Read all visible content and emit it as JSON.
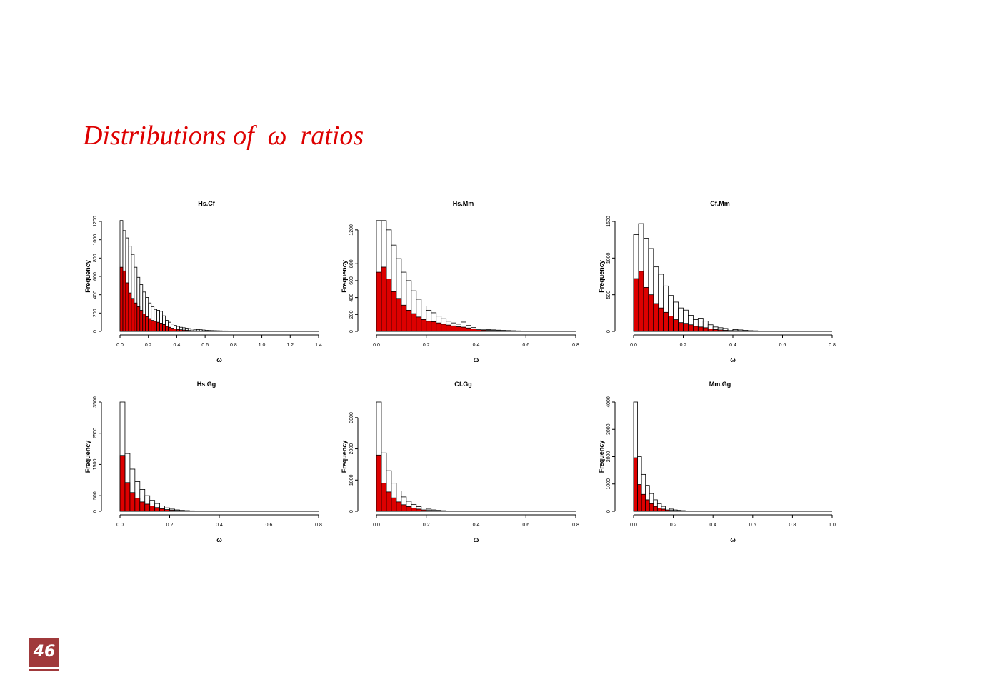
{
  "slide": {
    "title": "Distributions of  ω  ratios",
    "page_number": "46"
  },
  "colors": {
    "title": "#dd0000",
    "filled_bars": "#dd0000",
    "outline_bars": "#ffffff",
    "page_badge": "#a0393b"
  },
  "chart_data": [
    {
      "type": "bar",
      "title": "Hs.Cf",
      "xlabel": "ω",
      "ylabel": "Frequency",
      "bin_width": 0.02,
      "x_start": 0.0,
      "xlim": [
        0,
        1.4
      ],
      "ylim": [
        0,
        1200
      ],
      "x_ticks": [
        "0.0",
        "0.2",
        "0.4",
        "0.6",
        "0.8",
        "1.0",
        "1.2",
        "1.4"
      ],
      "y_ticks": [
        "0",
        "200",
        "400",
        "600",
        "800",
        "1000",
        "1200"
      ],
      "series": [
        {
          "fill": "outline",
          "values": [
            1210,
            1100,
            1020,
            930,
            840,
            700,
            590,
            510,
            430,
            370,
            310,
            270,
            240,
            230,
            220,
            170,
            120,
            100,
            80,
            65,
            55,
            45,
            40,
            35,
            30,
            25,
            22,
            20,
            18,
            15,
            12,
            10,
            9,
            8,
            7,
            6,
            5,
            5,
            4,
            4,
            3,
            3,
            2,
            2,
            2,
            2,
            1,
            1,
            1,
            1
          ]
        },
        {
          "fill": "red",
          "values": [
            700,
            660,
            530,
            420,
            360,
            310,
            270,
            230,
            190,
            160,
            140,
            120,
            110,
            100,
            90,
            75,
            55,
            45,
            35,
            28,
            22,
            18,
            15,
            12,
            10,
            8,
            7,
            6,
            5,
            4,
            3,
            3,
            2,
            2,
            2,
            1,
            1,
            1,
            1,
            1,
            1,
            1,
            0,
            0,
            0,
            0,
            0,
            0,
            0,
            0
          ]
        }
      ]
    },
    {
      "type": "bar",
      "title": "Hs.Mm",
      "xlabel": "ω",
      "ylabel": "Frequency",
      "bin_width": 0.02,
      "x_start": 0.0,
      "xlim": [
        0,
        0.8
      ],
      "ylim": [
        0,
        1300
      ],
      "x_ticks": [
        "0.0",
        "0.2",
        "0.4",
        "0.6",
        "0.8"
      ],
      "y_ticks": [
        "0",
        "200",
        "400",
        "600",
        "800",
        "1200"
      ],
      "series": [
        {
          "fill": "outline",
          "values": [
            1310,
            1310,
            1200,
            1020,
            860,
            700,
            600,
            480,
            380,
            300,
            250,
            220,
            180,
            150,
            120,
            100,
            85,
            110,
            70,
            45,
            30,
            25,
            22,
            18,
            15,
            12,
            10,
            8,
            6,
            5
          ]
        },
        {
          "fill": "red",
          "values": [
            700,
            760,
            620,
            470,
            390,
            310,
            250,
            210,
            170,
            140,
            120,
            115,
            100,
            85,
            75,
            65,
            55,
            50,
            40,
            30,
            20,
            15,
            12,
            10,
            8,
            6,
            5,
            4,
            3,
            2
          ]
        }
      ]
    },
    {
      "type": "bar",
      "title": "Cf.Mm",
      "xlabel": "ω",
      "ylabel": "Frequency",
      "bin_width": 0.02,
      "x_start": 0.0,
      "xlim": [
        0,
        0.8
      ],
      "ylim": [
        0,
        1500
      ],
      "x_ticks": [
        "0.0",
        "0.2",
        "0.4",
        "0.6",
        "0.8"
      ],
      "y_ticks": [
        "0",
        "500",
        "1000",
        "1500"
      ],
      "series": [
        {
          "fill": "outline",
          "values": [
            1320,
            1470,
            1270,
            1130,
            880,
            780,
            620,
            490,
            400,
            320,
            290,
            220,
            160,
            180,
            140,
            90,
            60,
            50,
            40,
            35,
            25,
            20,
            15,
            10,
            8,
            5,
            3
          ]
        },
        {
          "fill": "red",
          "values": [
            720,
            820,
            600,
            500,
            380,
            320,
            260,
            210,
            160,
            120,
            110,
            90,
            70,
            60,
            50,
            35,
            25,
            20,
            15,
            12,
            10,
            8,
            6,
            4,
            3,
            2,
            1
          ]
        }
      ]
    },
    {
      "type": "bar",
      "title": "Hs.Gg",
      "xlabel": "ω",
      "ylabel": "Frequency",
      "bin_width": 0.02,
      "x_start": 0.0,
      "xlim": [
        0,
        0.8
      ],
      "ylim": [
        0,
        3500
      ],
      "x_ticks": [
        "0.0",
        "0.2",
        "0.4",
        "0.6",
        "0.8"
      ],
      "y_ticks": [
        "0",
        "500",
        "1500",
        "2500",
        "3500"
      ],
      "series": [
        {
          "fill": "outline",
          "values": [
            3500,
            1850,
            1350,
            950,
            700,
            500,
            350,
            250,
            170,
            110,
            70,
            45,
            30,
            22,
            15,
            10,
            8,
            5
          ]
        },
        {
          "fill": "red",
          "values": [
            1790,
            920,
            600,
            420,
            300,
            230,
            170,
            120,
            80,
            55,
            35,
            22,
            15,
            10,
            7,
            5,
            3,
            2
          ]
        }
      ]
    },
    {
      "type": "bar",
      "title": "Cf.Gg",
      "xlabel": "ω",
      "ylabel": "Frequency",
      "bin_width": 0.02,
      "x_start": 0.0,
      "xlim": [
        0,
        0.8
      ],
      "ylim": [
        0,
        3500
      ],
      "x_ticks": [
        "0.0",
        "0.2",
        "0.4",
        "0.6",
        "0.8"
      ],
      "y_ticks": [
        "0",
        "1000",
        "2000",
        "3000"
      ],
      "series": [
        {
          "fill": "outline",
          "values": [
            3500,
            1870,
            1300,
            900,
            650,
            460,
            320,
            220,
            150,
            100,
            70,
            45,
            30,
            20,
            12,
            8
          ]
        },
        {
          "fill": "red",
          "values": [
            1800,
            900,
            620,
            430,
            300,
            210,
            150,
            100,
            70,
            45,
            30,
            20,
            12,
            8,
            5,
            3
          ]
        }
      ]
    },
    {
      "type": "bar",
      "title": "Mm.Gg",
      "xlabel": "ω",
      "ylabel": "Frequency",
      "bin_width": 0.02,
      "x_start": 0.0,
      "xlim": [
        0,
        1.0
      ],
      "ylim": [
        0,
        4000
      ],
      "x_ticks": [
        "0.0",
        "0.2",
        "0.4",
        "0.6",
        "0.8",
        "1.0"
      ],
      "y_ticks": [
        "0",
        "1000",
        "2000",
        "3000",
        "4000"
      ],
      "series": [
        {
          "fill": "outline",
          "values": [
            4000,
            2000,
            1350,
            950,
            650,
            420,
            280,
            180,
            120,
            80,
            50,
            35,
            25,
            15,
            10
          ]
        },
        {
          "fill": "red",
          "values": [
            1960,
            980,
            620,
            420,
            280,
            180,
            120,
            80,
            50,
            35,
            20,
            15,
            10,
            6,
            4
          ]
        }
      ]
    }
  ]
}
